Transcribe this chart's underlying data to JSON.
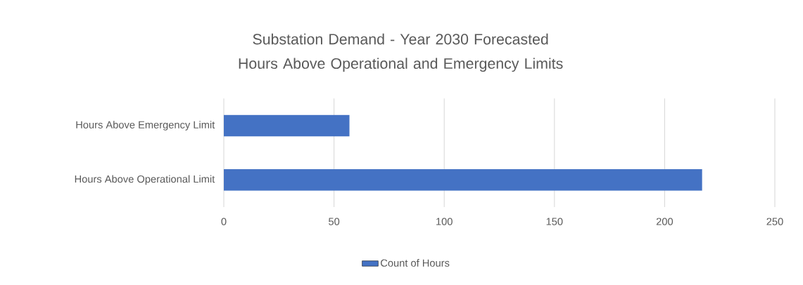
{
  "chart_data": {
    "type": "bar",
    "orientation": "horizontal",
    "title": "Substation Demand - Year 2030 Forecasted Hours  Above Operational and Emergency Limits",
    "categories": [
      "Hours Above Emergency Limit",
      "Hours Above Operational Limit"
    ],
    "series": [
      {
        "name": "Count of Hours",
        "color": "#4472c4",
        "values": [
          57,
          217
        ]
      }
    ],
    "xlim": [
      0,
      250
    ],
    "xticks": [
      0,
      50,
      100,
      150,
      200,
      250
    ],
    "grid": "x",
    "legend": "bottom"
  }
}
